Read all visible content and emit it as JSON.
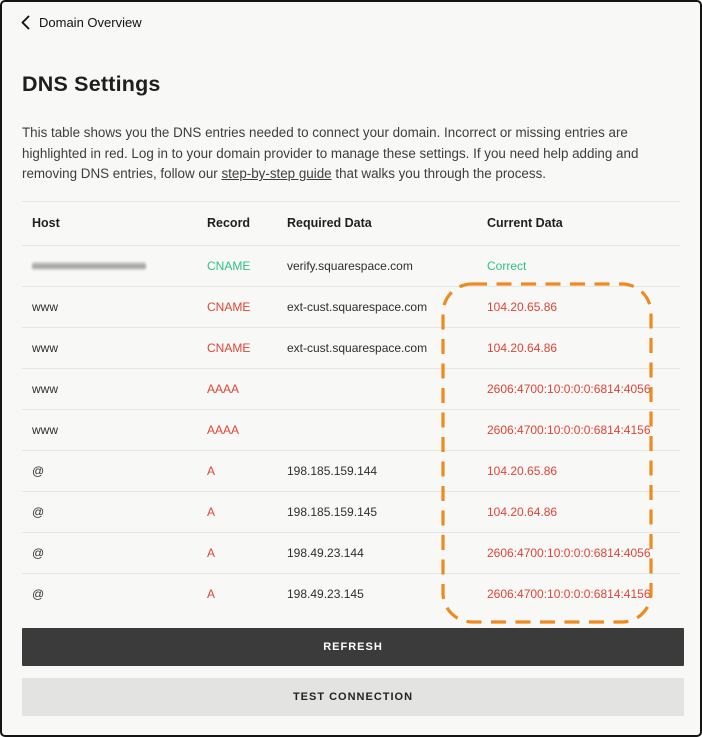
{
  "header": {
    "back_label": "Domain Overview"
  },
  "page": {
    "title": "DNS Settings",
    "description_before_link": "This table shows you the DNS entries needed to connect your domain. Incorrect or missing entries are highlighted in red. Log in to your domain provider to manage these settings. If you need help adding and removing DNS entries, follow our ",
    "description_link": "step-by-step guide",
    "description_after_link": " that walks you through the process."
  },
  "table": {
    "columns": [
      "Host",
      "Record",
      "Required Data",
      "Current Data"
    ],
    "rows": [
      {
        "host": "",
        "host_redacted": true,
        "record": "CNAME",
        "record_status": "ok",
        "required": "verify.squarespace.com",
        "current": "Correct",
        "current_status": "ok"
      },
      {
        "host": "www",
        "host_redacted": false,
        "record": "CNAME",
        "record_status": "error",
        "required": "ext-cust.squarespace.com",
        "current": "104.20.65.86",
        "current_status": "error"
      },
      {
        "host": "www",
        "host_redacted": false,
        "record": "CNAME",
        "record_status": "error",
        "required": "ext-cust.squarespace.com",
        "current": "104.20.64.86",
        "current_status": "error"
      },
      {
        "host": "www",
        "host_redacted": false,
        "record": "AAAA",
        "record_status": "error",
        "required": "",
        "current": "2606:4700:10:0:0:0:6814:4056",
        "current_status": "error"
      },
      {
        "host": "www",
        "host_redacted": false,
        "record": "AAAA",
        "record_status": "error",
        "required": "",
        "current": "2606:4700:10:0:0:0:6814:4156",
        "current_status": "error"
      },
      {
        "host": "@",
        "host_redacted": false,
        "record": "A",
        "record_status": "error",
        "required": "198.185.159.144",
        "current": "104.20.65.86",
        "current_status": "error"
      },
      {
        "host": "@",
        "host_redacted": false,
        "record": "A",
        "record_status": "error",
        "required": "198.185.159.145",
        "current": "104.20.64.86",
        "current_status": "error"
      },
      {
        "host": "@",
        "host_redacted": false,
        "record": "A",
        "record_status": "error",
        "required": "198.49.23.144",
        "current": "2606:4700:10:0:0:0:6814:4056",
        "current_status": "error"
      },
      {
        "host": "@",
        "host_redacted": false,
        "record": "A",
        "record_status": "error",
        "required": "198.49.23.145",
        "current": "2606:4700:10:0:0:0:6814:4156",
        "current_status": "error"
      }
    ]
  },
  "buttons": {
    "refresh": "REFRESH",
    "test_connection": "TEST CONNECTION"
  },
  "colors": {
    "ok": "#2fbe8f",
    "error": "#de4537",
    "highlight": "#ee8a1f"
  },
  "annotation": {
    "type": "dashed-rounded-rect",
    "highlights_column": "Current Data"
  }
}
